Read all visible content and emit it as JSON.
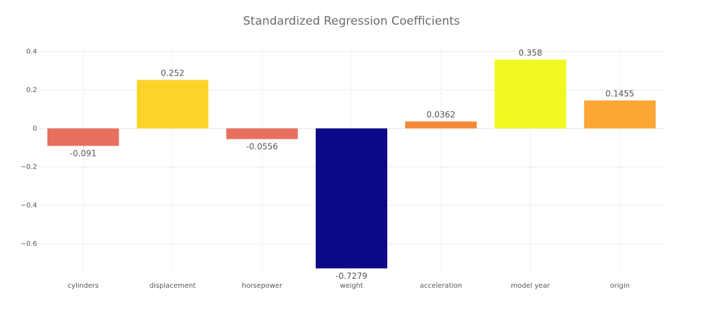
{
  "chart_data": {
    "type": "bar",
    "title": "Standardized Regression Coefficients",
    "xlabel": "",
    "ylabel": "",
    "categories": [
      "cylinders",
      "displacement",
      "horsepower",
      "weight",
      "acceleration",
      "model year",
      "origin"
    ],
    "values": [
      -0.091,
      0.252,
      -0.0556,
      -0.7279,
      0.0362,
      0.358,
      0.1455
    ],
    "value_labels": [
      "-0.091",
      "0.252",
      "-0.0556",
      "-0.7279",
      "0.0362",
      "0.358",
      "0.1455"
    ],
    "colors": [
      "#e8705f",
      "#fcd32a",
      "#e8705f",
      "#0d0887",
      "#f58a3b",
      "#f0f921",
      "#fca636"
    ],
    "ylim": [
      -0.73,
      0.41
    ],
    "y_ticks": [
      -0.6,
      -0.4,
      -0.2,
      0,
      0.2,
      0.4
    ],
    "y_tick_labels": [
      "−0.6",
      "−0.4",
      "−0.2",
      "0",
      "0.2",
      "0.4"
    ],
    "grid": true,
    "legend": "none"
  }
}
